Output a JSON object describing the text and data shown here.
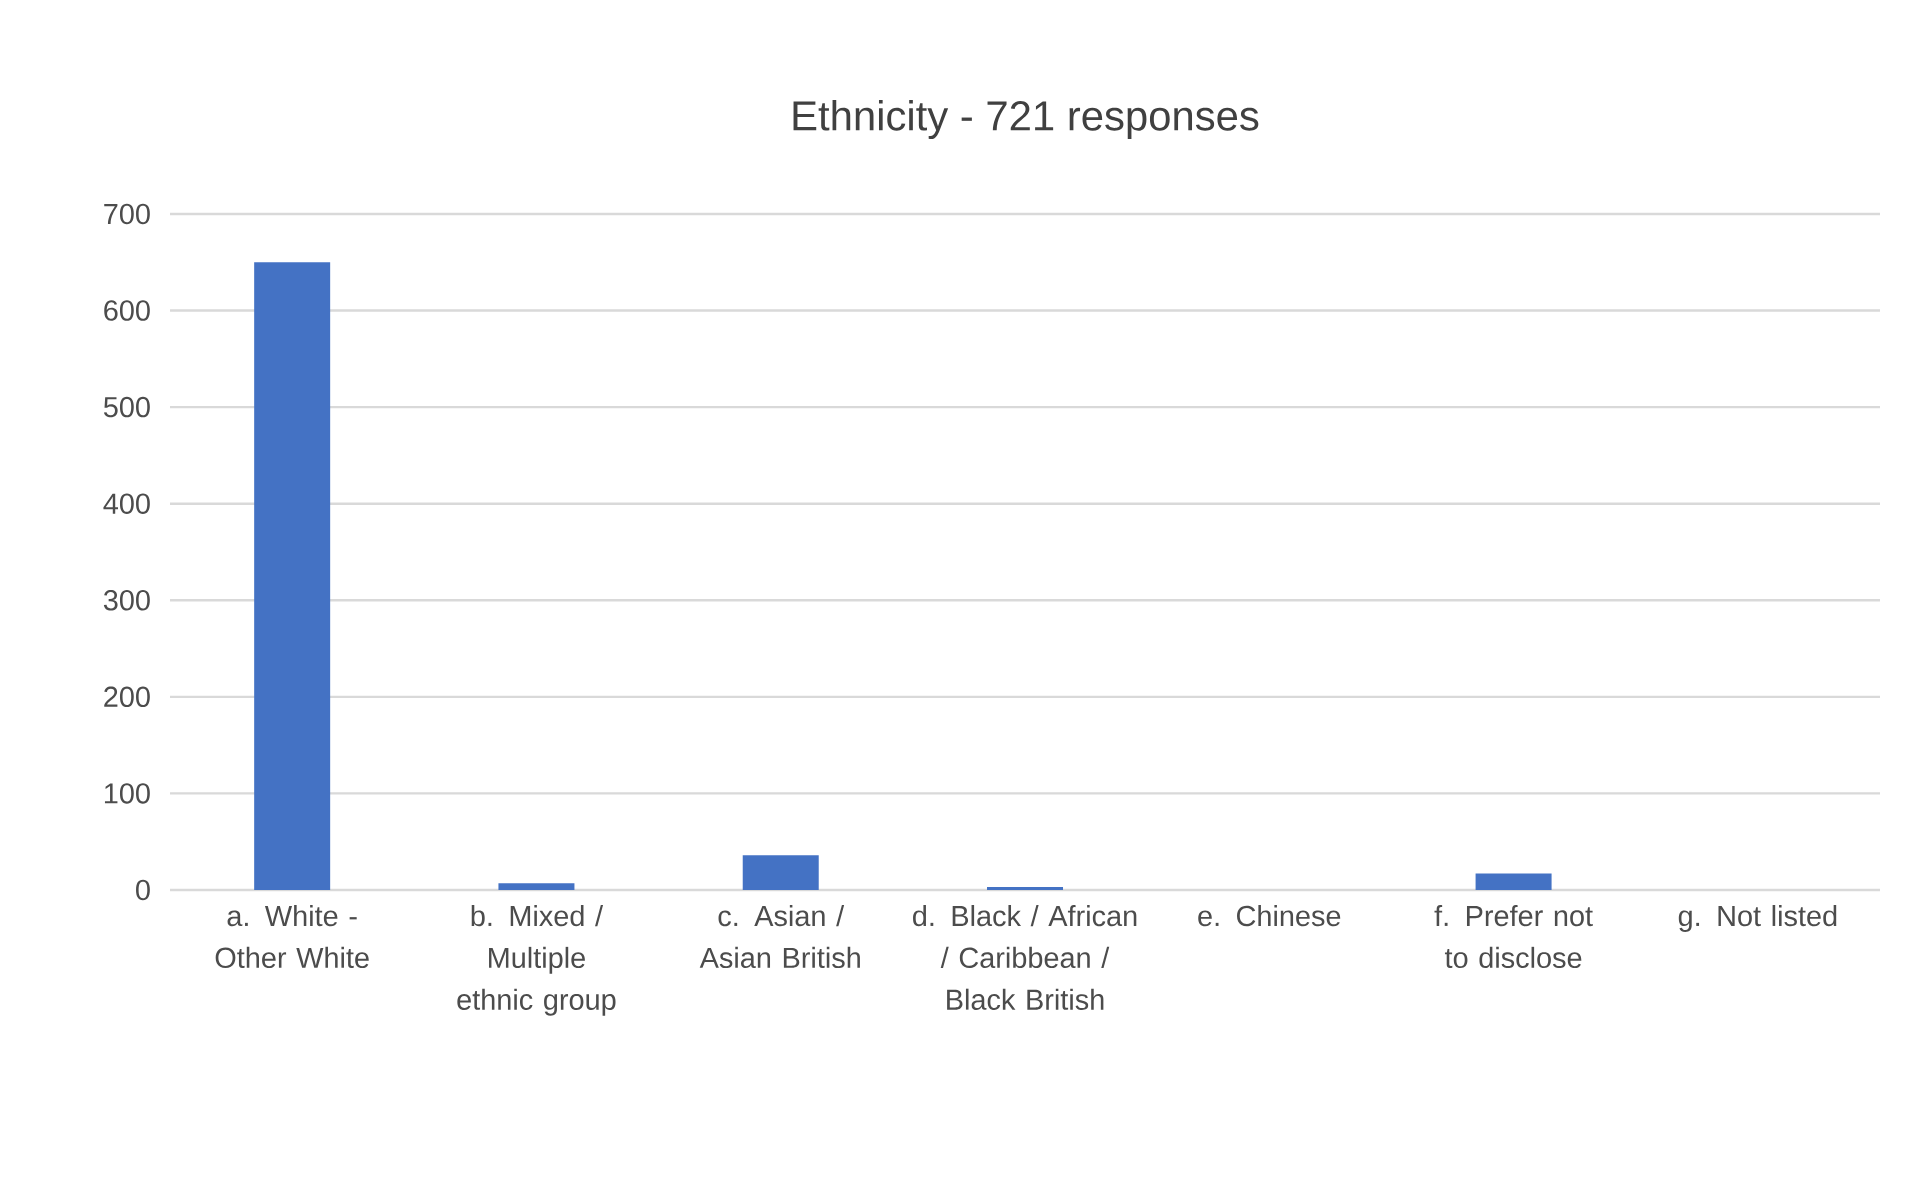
{
  "chart_data": {
    "type": "bar",
    "title": "Ethnicity - 721 responses",
    "categories": [
      "a. White - Other White",
      "b. Mixed / Multiple ethnic group",
      "c. Asian / Asian British",
      "d. Black / African / Caribbean / Black British",
      "e. Chinese",
      "f. Prefer not to disclose",
      "g. Not listed"
    ],
    "values": [
      650,
      7,
      36,
      3,
      0,
      17,
      0
    ],
    "color": "#4472c4",
    "ylim": [
      0,
      700
    ],
    "yticks": [
      0,
      100,
      200,
      300,
      400,
      500,
      600,
      700
    ],
    "grid": "y"
  }
}
